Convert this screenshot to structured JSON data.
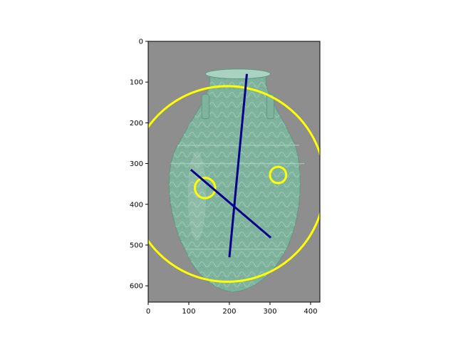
{
  "chart_data": {
    "type": "image-annotation",
    "xlim": [
      0,
      423
    ],
    "ylim": [
      640,
      0
    ],
    "x_ticks": [
      0,
      100,
      200,
      300,
      400
    ],
    "y_ticks": [
      0,
      100,
      200,
      300,
      400,
      500,
      600
    ],
    "image_subject": "celadon-vase",
    "colors": {
      "background": "#8e8e8e",
      "vase_body": "#7fb39d",
      "vase_dark": "#5f9882",
      "vase_light": "#a9d3c0",
      "circle": "#ffff00",
      "line": "#00008b"
    },
    "circles": [
      {
        "cx": 195,
        "cy": 350,
        "r": 240
      },
      {
        "cx": 140,
        "cy": 360,
        "r": 25
      },
      {
        "cx": 320,
        "cy": 328,
        "r": 20
      }
    ],
    "lines": [
      {
        "x1": 243,
        "y1": 80,
        "x2": 200,
        "y2": 530
      },
      {
        "x1": 105,
        "y1": 315,
        "x2": 302,
        "y2": 482
      }
    ]
  }
}
